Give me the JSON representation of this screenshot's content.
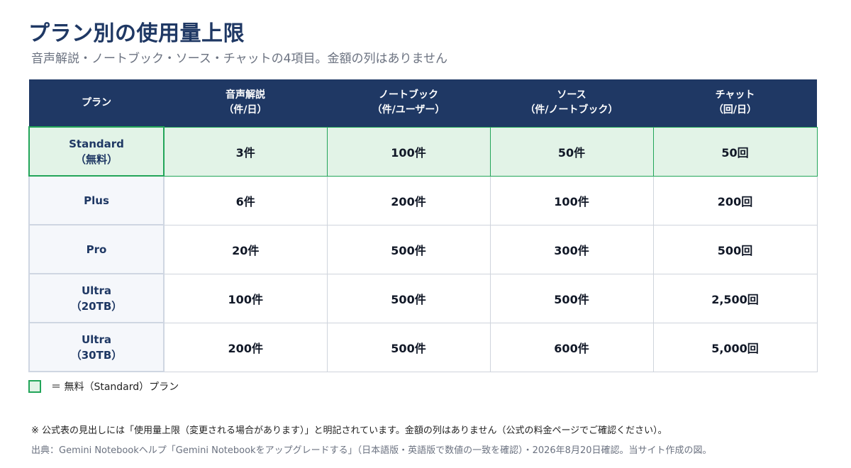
{
  "header": {
    "title": "プラン別の使用量上限",
    "subtitle": "音声解説・ノートブック・ソース・チャットの4項目。金額の列はありません"
  },
  "table": {
    "columns": [
      {
        "line1": "プラン",
        "line2": ""
      },
      {
        "line1": "音声解説",
        "line2": "（件/日）"
      },
      {
        "line1": "ノートブック",
        "line2": "（件/ユーザー）"
      },
      {
        "line1": "ソース",
        "line2": "（件/ノートブック）"
      },
      {
        "line1": "チャット",
        "line2": "（回/日）"
      }
    ],
    "rows": [
      {
        "plan_line1": "Standard",
        "plan_line2": "（無料）",
        "audio": "3件",
        "notebooks": "100件",
        "sources": "50件",
        "chat": "50回"
      },
      {
        "plan_line1": "Plus",
        "plan_line2": "",
        "audio": "6件",
        "notebooks": "200件",
        "sources": "100件",
        "chat": "200回"
      },
      {
        "plan_line1": "Pro",
        "plan_line2": "",
        "audio": "20件",
        "notebooks": "500件",
        "sources": "300件",
        "chat": "500回"
      },
      {
        "plan_line1": "Ultra",
        "plan_line2": "（20TB）",
        "audio": "100件",
        "notebooks": "500件",
        "sources": "500件",
        "chat": "2,500回"
      },
      {
        "plan_line1": "Ultra",
        "plan_line2": "（30TB）",
        "audio": "200件",
        "notebooks": "500件",
        "sources": "600件",
        "chat": "5,000回"
      }
    ]
  },
  "legend": {
    "text": "＝ 無料（Standard）プラン",
    "swatch_color": "#e2f3e7",
    "swatch_border": "#22a559"
  },
  "footer": {
    "note": "※ 公式表の見出しには「使用量上限（変更される場合があります）」と明記されています。金額の列はありません（公式の料金ページでご確認ください）。",
    "source": "出典：Gemini Notebookヘルプ「Gemini Notebookをアップグレードする」（日本語版・英語版で数値の一致を確認）・2026年8月20日確認。当サイト作成の図。"
  },
  "colors": {
    "header_bg": "#1f3864",
    "free_row_bg": "#e2f3e7",
    "free_row_border": "#22a559",
    "plan_cell_bg": "#f5f7fb"
  }
}
